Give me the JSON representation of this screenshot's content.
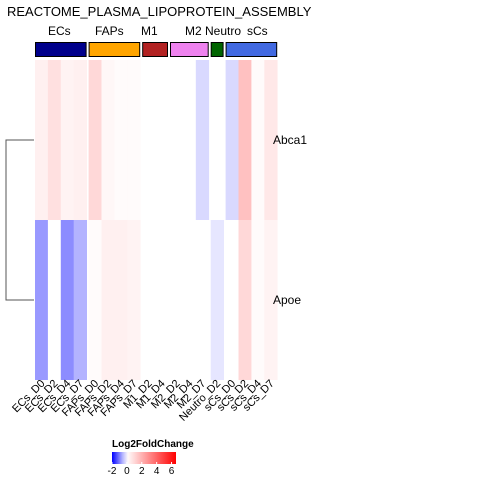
{
  "chart_data": {
    "type": "heatmap",
    "title": "REACTOME_PLASMA_LIPOPROTEIN_ASSEMBLY",
    "rows": [
      "Abca1",
      "Apoe"
    ],
    "columns": [
      "ECs_D0",
      "ECs_D2",
      "ECs_D4",
      "ECs_D7",
      "FAPs_D0",
      "FAPs_D2",
      "FAPs_D4",
      "FAPs_D7",
      "M1_D2",
      "M1_D4",
      "M2_D2",
      "M2_D4",
      "M2_D7",
      "Neutro_D2",
      "sCs_D0",
      "sCs_D2",
      "sCs_D4",
      "sCs_D7"
    ],
    "values": [
      [
        0.4,
        0.8,
        0.3,
        0.4,
        1.0,
        0.2,
        0.1,
        0.1,
        0.0,
        0.0,
        0.0,
        0.0,
        -0.3,
        0.0,
        -0.3,
        1.6,
        0.1,
        0.6
      ],
      [
        -0.8,
        0.0,
        -0.9,
        -0.6,
        0.1,
        0.4,
        0.4,
        0.3,
        0.0,
        0.0,
        0.0,
        0.0,
        0.0,
        -0.2,
        0.0,
        1.0,
        0.1,
        0.3
      ]
    ],
    "groups": [
      {
        "name": "ECs",
        "color": "#00008B",
        "count": 4
      },
      {
        "name": "FAPs",
        "color": "#FFA500",
        "count": 4
      },
      {
        "name": "M1",
        "color": "#B22222",
        "count": 2
      },
      {
        "name": "M2",
        "color": "#EE82EE",
        "count": 3
      },
      {
        "name": "Neutro",
        "color": "#006400",
        "count": 1
      },
      {
        "name": "sCs",
        "color": "#4169E1",
        "count": 4
      }
    ],
    "legend": {
      "title": "Log2FoldChange",
      "ticks": [
        -2,
        0,
        2,
        4,
        6
      ],
      "range": [
        -2,
        6.6
      ],
      "low_color": "#0000FF",
      "mid_color": "#FFFFFF",
      "high_color": "#FF0000"
    },
    "row_dendrogram": true
  }
}
